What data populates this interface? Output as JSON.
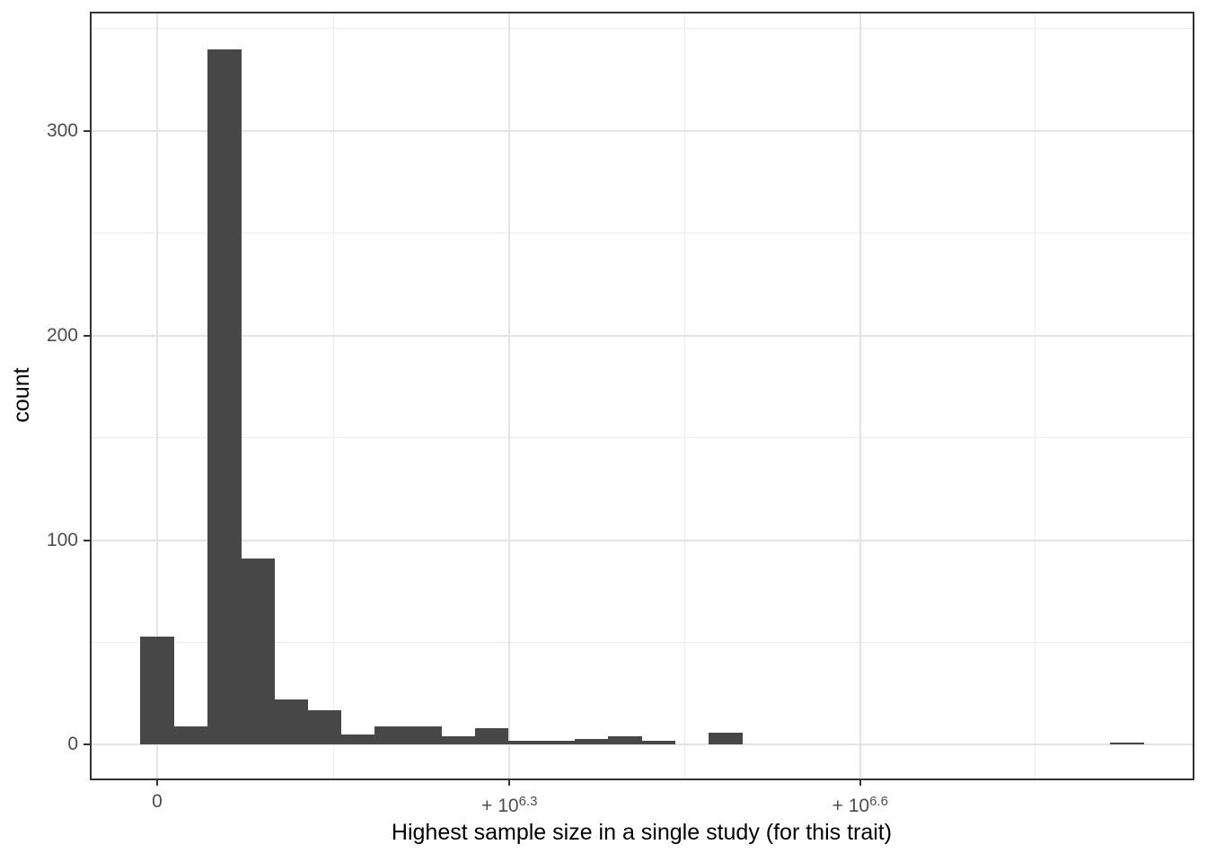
{
  "figure": {
    "background_color": "#FFFFFF"
  },
  "chart_data": {
    "type": "histogram",
    "title": "",
    "xlabel": "Highest sample size in a single study (for this trait)",
    "ylabel": "count",
    "grid": true,
    "legend": "none",
    "colors": {
      "bar_fill": "#474747",
      "grid_major": "#E3E3E3",
      "grid_minor": "#EDEDED",
      "panel_border": "#333333",
      "tick_mark": "#333333",
      "tick_label": "#4D4D4D",
      "axis_title": "#000000"
    },
    "x_axis": {
      "ticks": [
        {
          "value": 0,
          "base": "0",
          "sup": ""
        },
        {
          "value": 1995262,
          "base": "+ 10",
          "sup": "6.3"
        },
        {
          "value": 3981072,
          "base": "+ 10",
          "sup": "6.6"
        }
      ],
      "minor_values": [
        997631,
        2988167,
        4973708
      ],
      "xlim": [
        -376250,
        5863680
      ]
    },
    "y_axis": {
      "ticks": [
        {
          "value": 0,
          "label": "0"
        },
        {
          "value": 100,
          "label": "100"
        },
        {
          "value": 200,
          "label": "200"
        },
        {
          "value": 300,
          "label": "300"
        }
      ],
      "minor_values": [
        50,
        150,
        250,
        350
      ],
      "ylim": [
        -16.5,
        357.9
      ]
    },
    "bin_width": 189300,
    "bin_centers": [
      0,
      189300,
      378600,
      567900,
      757200,
      946500,
      1135800,
      1325100,
      1514400,
      1703700,
      1893000,
      2082300,
      2271600,
      2460900,
      2650200,
      2839500,
      3028800,
      3218100,
      3407400,
      3596700,
      3786000,
      3975300,
      4164600,
      4353900,
      4543200,
      4732500,
      4921800,
      5111100,
      5300400,
      5489700
    ],
    "counts": [
      53,
      9,
      340,
      91,
      22,
      17,
      5,
      9,
      9,
      4,
      8,
      2,
      2,
      3,
      4,
      2,
      0,
      6,
      0,
      0,
      0,
      0,
      0,
      0,
      0,
      0,
      0,
      0,
      0,
      1
    ]
  }
}
